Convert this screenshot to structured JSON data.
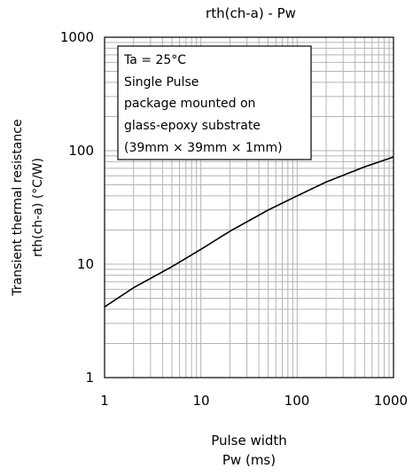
{
  "chart_data": {
    "type": "line",
    "title": "rth(ch-a) - Pw",
    "xlabel": [
      "Pulse width",
      "Pw (ms)"
    ],
    "ylabel": [
      "Transient thermal resistance",
      "rth(ch-a) (°C/W)"
    ],
    "xscale": "log",
    "yscale": "log",
    "xlim": [
      1,
      1000
    ],
    "ylim": [
      1,
      1000
    ],
    "xticks": [
      "1",
      "10",
      "100",
      "1000"
    ],
    "yticks": [
      "1000",
      "100",
      "10",
      "1"
    ],
    "grid": true,
    "annotation": [
      "Ta = 25°C",
      "Single Pulse",
      "package mounted on",
      "glass-epoxy substrate",
      "(39mm × 39mm × 1mm)"
    ],
    "series": [
      {
        "x": [
          1,
          2,
          5,
          10,
          20,
          50,
          100,
          200,
          500,
          1000
        ],
        "y": [
          4.2,
          6.2,
          9.5,
          13.5,
          19.5,
          30,
          40,
          53,
          72,
          88
        ]
      }
    ],
    "line_color": "#000000",
    "grid_color": "#b4b4b4"
  }
}
